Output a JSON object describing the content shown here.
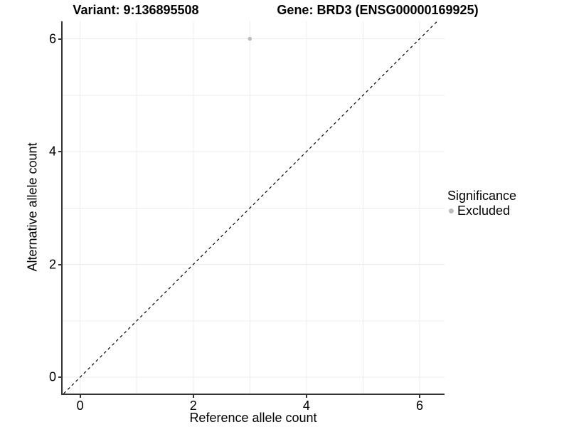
{
  "titles": {
    "variant": "Variant: 9:136895508",
    "gene": "Gene: BRD3 (ENSG00000169925)"
  },
  "legend": {
    "title": "Significance",
    "items": [
      {
        "label": "Excluded",
        "color": "#bcbcbc"
      }
    ]
  },
  "chart_data": {
    "type": "scatter",
    "title": "Variant: 9:136895508   Gene: BRD3 (ENSG00000169925)",
    "xlabel": "Reference allele count",
    "ylabel": "Alternative allele count",
    "xlim": [
      -0.31,
      6.44
    ],
    "ylim": [
      -0.29,
      6.31
    ],
    "xticks": [
      0,
      2,
      4,
      6
    ],
    "yticks": [
      0,
      2,
      4,
      6
    ],
    "xtick_labels": [
      "0",
      "2",
      "4",
      "6"
    ],
    "ytick_labels": [
      "0",
      "2",
      "4",
      "6"
    ],
    "grid": {
      "x_lines": [
        0,
        1,
        2,
        3,
        4,
        5,
        6
      ],
      "y_lines": [
        0,
        1,
        2,
        3,
        4,
        5,
        6
      ],
      "color": "#ececec"
    },
    "reference_line": {
      "type": "identity",
      "equation": "y = x",
      "style": "dashed",
      "color": "#000000"
    },
    "series": [
      {
        "name": "Excluded",
        "color": "#bcbcbc",
        "points": [
          {
            "x": 3,
            "y": 6
          }
        ]
      }
    ],
    "legend_position": "right",
    "axis_color": "#333333"
  }
}
